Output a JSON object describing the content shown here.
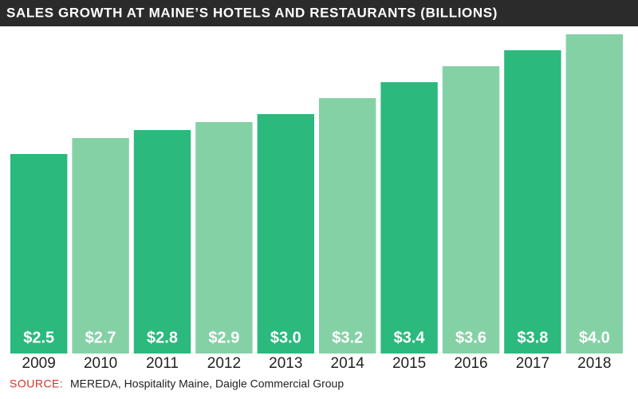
{
  "chart_data": {
    "type": "bar",
    "title": "SALES GROWTH AT MAINE’S HOTELS AND RESTAURANTS (BILLIONS)",
    "categories": [
      "2009",
      "2010",
      "2011",
      "2012",
      "2013",
      "2014",
      "2015",
      "2016",
      "2017",
      "2018"
    ],
    "values": [
      2.5,
      2.7,
      2.8,
      2.9,
      3.0,
      3.2,
      3.4,
      3.6,
      3.8,
      4.0
    ],
    "value_labels": [
      "$2.5",
      "$2.7",
      "$2.8",
      "$2.9",
      "$3.0",
      "$3.2",
      "$3.4",
      "$3.6",
      "$3.8",
      "$4.0"
    ],
    "colors": [
      "#2bb97d",
      "#85d1a6",
      "#2bb97d",
      "#85d1a6",
      "#2bb97d",
      "#85d1a6",
      "#2bb97d",
      "#85d1a6",
      "#2bb97d",
      "#85d1a6"
    ],
    "ylim": [
      0,
      4.0
    ],
    "source_label": "SOURCE:",
    "source": "MEREDA, Hospitality Maine, Daigle Commercial Group"
  }
}
